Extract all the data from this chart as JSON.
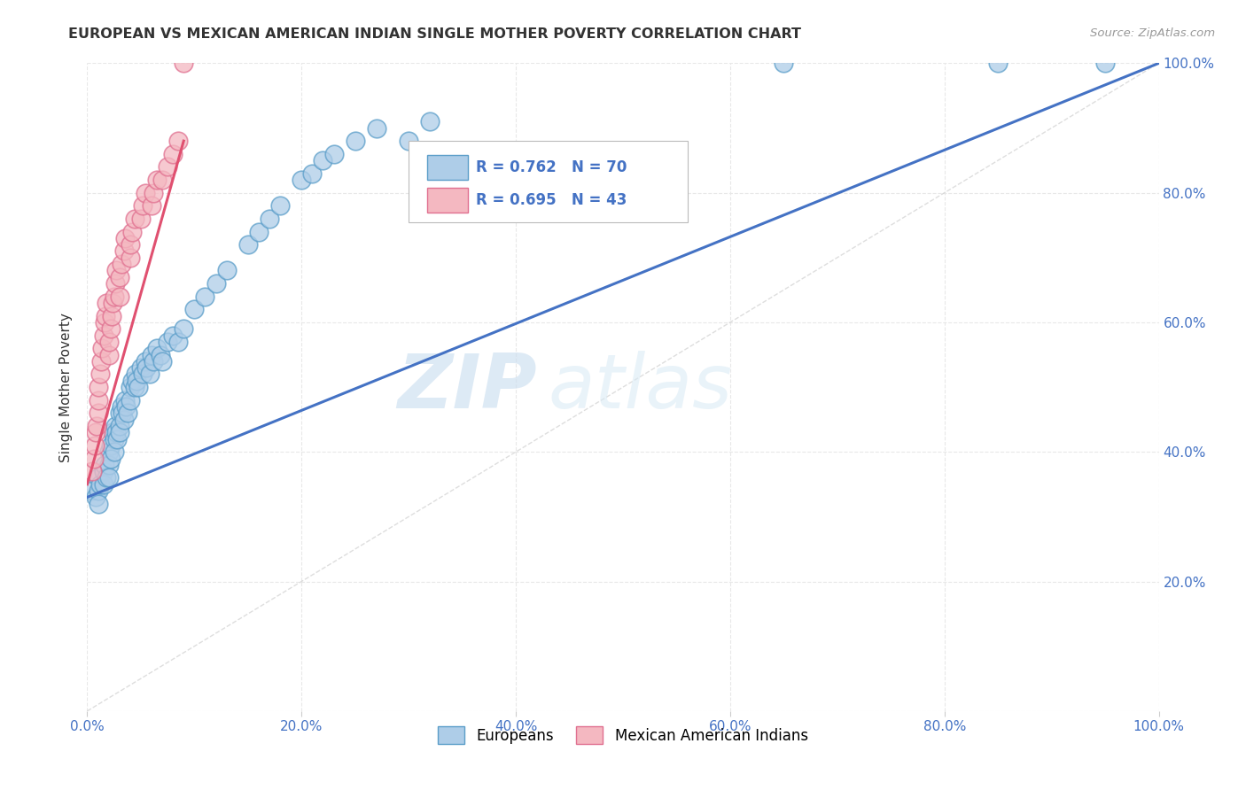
{
  "title": "EUROPEAN VS MEXICAN AMERICAN INDIAN SINGLE MOTHER POVERTY CORRELATION CHART",
  "source": "Source: ZipAtlas.com",
  "ylabel": "Single Mother Poverty",
  "xlim": [
    0,
    1
  ],
  "ylim": [
    0,
    1
  ],
  "xticks": [
    0,
    0.2,
    0.4,
    0.6,
    0.8,
    1.0
  ],
  "yticks": [
    0,
    0.2,
    0.4,
    0.6,
    0.8,
    1.0
  ],
  "xticklabels": [
    "0.0%",
    "20.0%",
    "40.0%",
    "60.0%",
    "80.0%",
    "100.0%"
  ],
  "yticklabels_right": [
    "",
    "20.0%",
    "40.0%",
    "60.0%",
    "80.0%",
    "100.0%"
  ],
  "blue_face": "#aecde8",
  "blue_edge": "#5b9ec9",
  "pink_face": "#f4b8c1",
  "pink_edge": "#e07090",
  "blue_line_color": "#4472c4",
  "pink_line_color": "#e05070",
  "diag_line_color": "#d0d0d0",
  "tick_color": "#4472c4",
  "legend_blue_label": "Europeans",
  "legend_pink_label": "Mexican American Indians",
  "legend_r_blue": "R = 0.762   N = 70",
  "legend_r_pink": "R = 0.695   N = 43",
  "watermark_zip": "ZIP",
  "watermark_atlas": "atlas",
  "blue_x": [
    0.005,
    0.008,
    0.01,
    0.01,
    0.01,
    0.012,
    0.015,
    0.015,
    0.016,
    0.018,
    0.02,
    0.02,
    0.02,
    0.022,
    0.022,
    0.024,
    0.025,
    0.025,
    0.026,
    0.027,
    0.028,
    0.03,
    0.03,
    0.03,
    0.032,
    0.033,
    0.034,
    0.035,
    0.036,
    0.038,
    0.04,
    0.04,
    0.042,
    0.044,
    0.045,
    0.046,
    0.048,
    0.05,
    0.052,
    0.054,
    0.055,
    0.058,
    0.06,
    0.062,
    0.065,
    0.068,
    0.07,
    0.075,
    0.08,
    0.085,
    0.09,
    0.1,
    0.11,
    0.12,
    0.13,
    0.15,
    0.16,
    0.17,
    0.18,
    0.2,
    0.21,
    0.22,
    0.23,
    0.25,
    0.27,
    0.3,
    0.32,
    0.65,
    0.85,
    0.95
  ],
  "blue_y": [
    0.34,
    0.33,
    0.36,
    0.34,
    0.32,
    0.35,
    0.37,
    0.35,
    0.38,
    0.36,
    0.4,
    0.38,
    0.36,
    0.41,
    0.39,
    0.43,
    0.42,
    0.4,
    0.44,
    0.43,
    0.42,
    0.46,
    0.44,
    0.43,
    0.47,
    0.46,
    0.45,
    0.48,
    0.47,
    0.46,
    0.5,
    0.48,
    0.51,
    0.5,
    0.52,
    0.51,
    0.5,
    0.53,
    0.52,
    0.54,
    0.53,
    0.52,
    0.55,
    0.54,
    0.56,
    0.55,
    0.54,
    0.57,
    0.58,
    0.57,
    0.59,
    0.62,
    0.64,
    0.66,
    0.68,
    0.72,
    0.74,
    0.76,
    0.78,
    0.82,
    0.83,
    0.85,
    0.86,
    0.88,
    0.9,
    0.88,
    0.91,
    1.0,
    1.0,
    1.0
  ],
  "pink_x": [
    0.005,
    0.006,
    0.007,
    0.008,
    0.009,
    0.01,
    0.01,
    0.01,
    0.012,
    0.013,
    0.014,
    0.015,
    0.016,
    0.017,
    0.018,
    0.02,
    0.02,
    0.022,
    0.023,
    0.024,
    0.025,
    0.026,
    0.027,
    0.03,
    0.03,
    0.032,
    0.034,
    0.035,
    0.04,
    0.04,
    0.042,
    0.044,
    0.05,
    0.052,
    0.054,
    0.06,
    0.062,
    0.065,
    0.07,
    0.075,
    0.08,
    0.085,
    0.09
  ],
  "pink_y": [
    0.37,
    0.39,
    0.41,
    0.43,
    0.44,
    0.46,
    0.48,
    0.5,
    0.52,
    0.54,
    0.56,
    0.58,
    0.6,
    0.61,
    0.63,
    0.55,
    0.57,
    0.59,
    0.61,
    0.63,
    0.64,
    0.66,
    0.68,
    0.64,
    0.67,
    0.69,
    0.71,
    0.73,
    0.7,
    0.72,
    0.74,
    0.76,
    0.76,
    0.78,
    0.8,
    0.78,
    0.8,
    0.82,
    0.82,
    0.84,
    0.86,
    0.88,
    1.0
  ],
  "blue_line_x": [
    0.0,
    1.0
  ],
  "blue_line_y": [
    0.33,
    1.0
  ],
  "pink_line_x": [
    0.0,
    0.09
  ],
  "pink_line_y": [
    0.35,
    0.88
  ]
}
